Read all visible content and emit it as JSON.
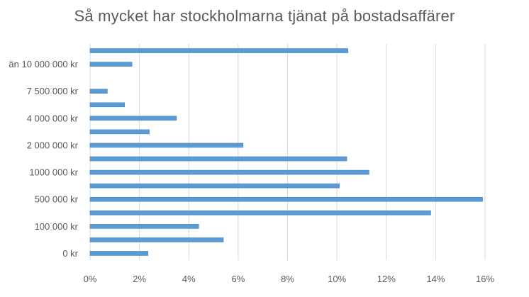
{
  "chart_data": {
    "type": "bar",
    "orientation": "horizontal",
    "title": "Så mycket har stockholmarna tjänat på bostadsaffärer",
    "xlabel": "",
    "ylabel": "",
    "xlim": [
      0,
      16
    ],
    "x_ticks": [
      "0%",
      "2%",
      "4%",
      "6%",
      "8%",
      "10%",
      "12%",
      "14%",
      "16%"
    ],
    "grid": "vertical",
    "legend": "none",
    "bar_color": "#5B9BD5",
    "categories": [
      "0 kr",
      "",
      "100 000 kr",
      "",
      "500 000 kr",
      "",
      "1000 000 kr",
      "",
      "2 000 000 kr",
      "",
      "4 000 000 kr",
      "",
      "7 500 000 kr",
      "",
      "än 10 000 000 kr",
      ""
    ],
    "values": [
      2.35,
      5.4,
      4.4,
      13.8,
      15.9,
      10.1,
      11.3,
      10.4,
      6.2,
      2.4,
      3.5,
      1.4,
      0.7,
      null,
      1.7,
      10.45
    ]
  }
}
